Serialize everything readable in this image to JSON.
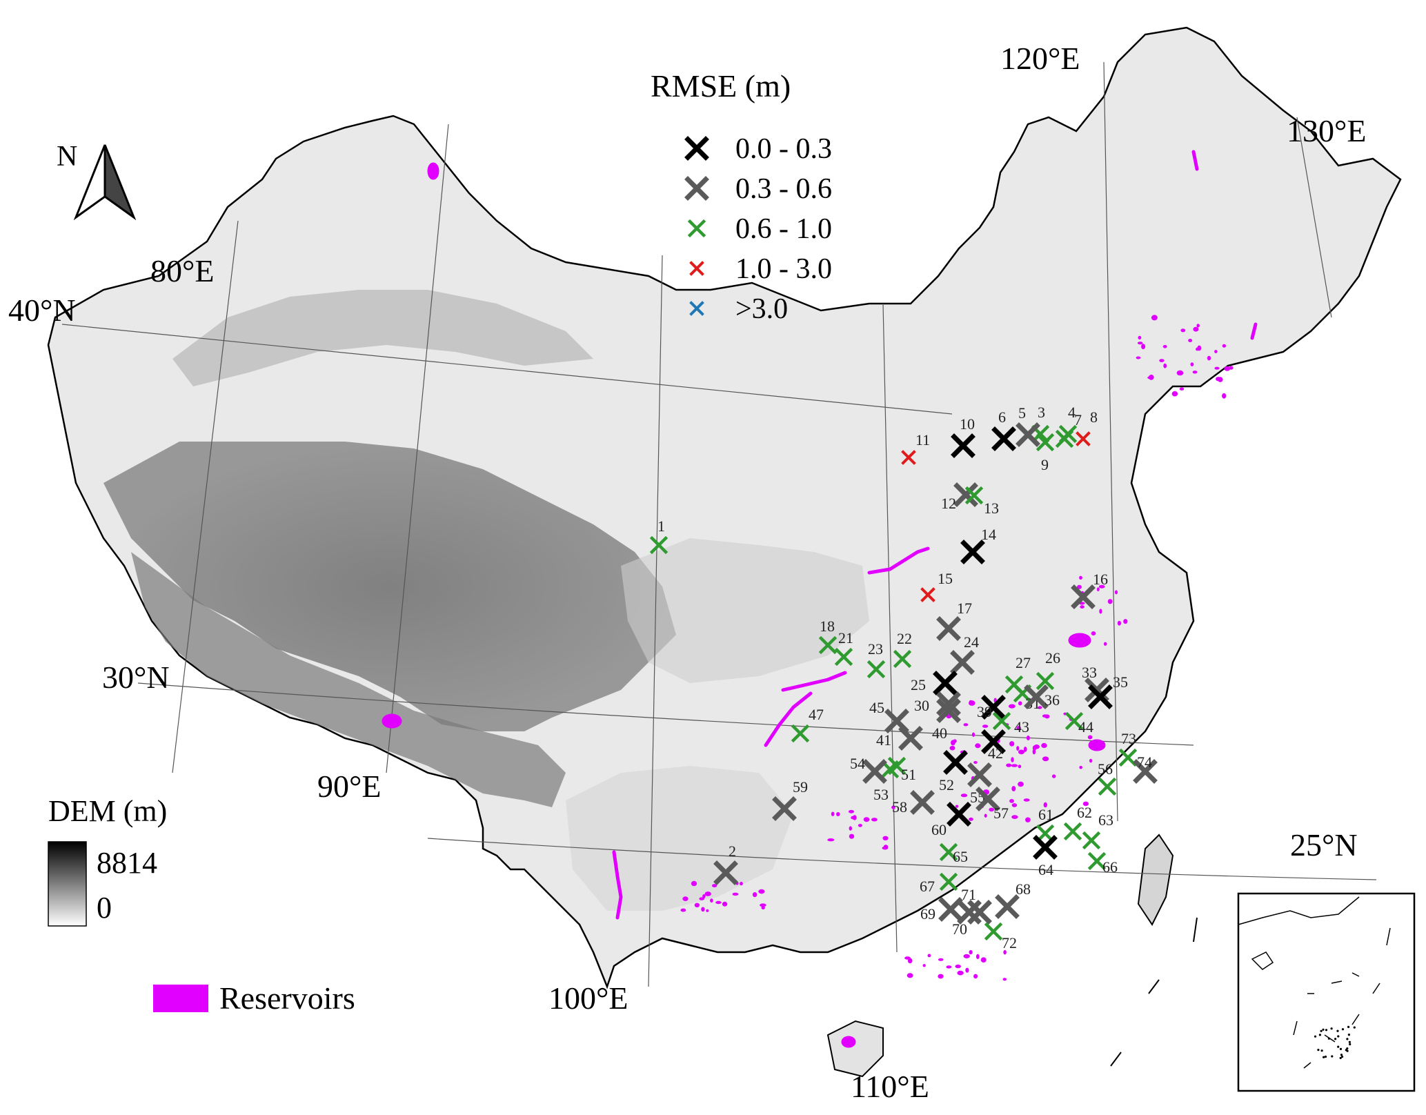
{
  "legend": {
    "title": "RMSE (m)",
    "classes": [
      {
        "label": "0.0 - 0.3",
        "color": "#000000",
        "size": "large"
      },
      {
        "label": "0.3 - 0.6",
        "color": "#5a5a5a",
        "size": "large"
      },
      {
        "label": "0.6 - 1.0",
        "color": "#2f9a2f",
        "size": "medium"
      },
      {
        "label": "1.0 - 3.0",
        "color": "#e01b1b",
        "size": "small"
      },
      {
        "label": ">3.0",
        "color": "#1f77b4",
        "size": "small"
      }
    ]
  },
  "north_arrow": {
    "label": "N"
  },
  "dem_legend": {
    "title": "DEM (m)",
    "max_label": "8814",
    "min_label": "0"
  },
  "reservoir_legend": {
    "label": "Reservoirs",
    "color": "#e100ff"
  },
  "graticule_labels": {
    "lon_80": "80°E",
    "lon_90": "90°E",
    "lon_100": "100°E",
    "lon_110": "110°E",
    "lon_120": "120°E",
    "lon_130": "130°E",
    "lat_40": "40°N",
    "lat_30": "30°N",
    "lat_25": "25°N"
  },
  "stations": [
    {
      "id": "1",
      "cls": 2
    },
    {
      "id": "2",
      "cls": 1
    },
    {
      "id": "3",
      "cls": 2
    },
    {
      "id": "4",
      "cls": 2
    },
    {
      "id": "5",
      "cls": 1
    },
    {
      "id": "6",
      "cls": 0
    },
    {
      "id": "7",
      "cls": 2
    },
    {
      "id": "8",
      "cls": 3
    },
    {
      "id": "9",
      "cls": 2
    },
    {
      "id": "10",
      "cls": 0
    },
    {
      "id": "11",
      "cls": 3
    },
    {
      "id": "12",
      "cls": 1
    },
    {
      "id": "13",
      "cls": 2
    },
    {
      "id": "14",
      "cls": 0
    },
    {
      "id": "15",
      "cls": 3
    },
    {
      "id": "16",
      "cls": 1
    },
    {
      "id": "17",
      "cls": 1
    },
    {
      "id": "18",
      "cls": 2
    },
    {
      "id": "21",
      "cls": 2
    },
    {
      "id": "22",
      "cls": 2
    },
    {
      "id": "23",
      "cls": 2
    },
    {
      "id": "24",
      "cls": 1
    },
    {
      "id": "25",
      "cls": 0
    },
    {
      "id": "26",
      "cls": 2
    },
    {
      "id": "27",
      "cls": 2
    },
    {
      "id": "30",
      "cls": 1
    },
    {
      "id": "31",
      "cls": 2
    },
    {
      "id": "33",
      "cls": 1
    },
    {
      "id": "35",
      "cls": 0
    },
    {
      "id": "36",
      "cls": 1
    },
    {
      "id": "39",
      "cls": 0
    },
    {
      "id": "40",
      "cls": 1
    },
    {
      "id": "41",
      "cls": 1
    },
    {
      "id": "42",
      "cls": 0
    },
    {
      "id": "43",
      "cls": 2
    },
    {
      "id": "44",
      "cls": 2
    },
    {
      "id": "45",
      "cls": 1
    },
    {
      "id": "47",
      "cls": 2
    },
    {
      "id": "51",
      "cls": 2
    },
    {
      "id": "52",
      "cls": 0
    },
    {
      "id": "53",
      "cls": 2
    },
    {
      "id": "54",
      "cls": 1
    },
    {
      "id": "55",
      "cls": 1
    },
    {
      "id": "56",
      "cls": 2
    },
    {
      "id": "57",
      "cls": 1
    },
    {
      "id": "58",
      "cls": 1
    },
    {
      "id": "59",
      "cls": 1
    },
    {
      "id": "60",
      "cls": 0
    },
    {
      "id": "61",
      "cls": 2
    },
    {
      "id": "62",
      "cls": 2
    },
    {
      "id": "63",
      "cls": 2
    },
    {
      "id": "64",
      "cls": 0
    },
    {
      "id": "65",
      "cls": 2
    },
    {
      "id": "66",
      "cls": 2
    },
    {
      "id": "67",
      "cls": 2
    },
    {
      "id": "68",
      "cls": 1
    },
    {
      "id": "69",
      "cls": 1
    },
    {
      "id": "70",
      "cls": 1
    },
    {
      "id": "71",
      "cls": 1
    },
    {
      "id": "72",
      "cls": 2
    },
    {
      "id": "73",
      "cls": 2
    },
    {
      "id": "74",
      "cls": 1
    }
  ]
}
